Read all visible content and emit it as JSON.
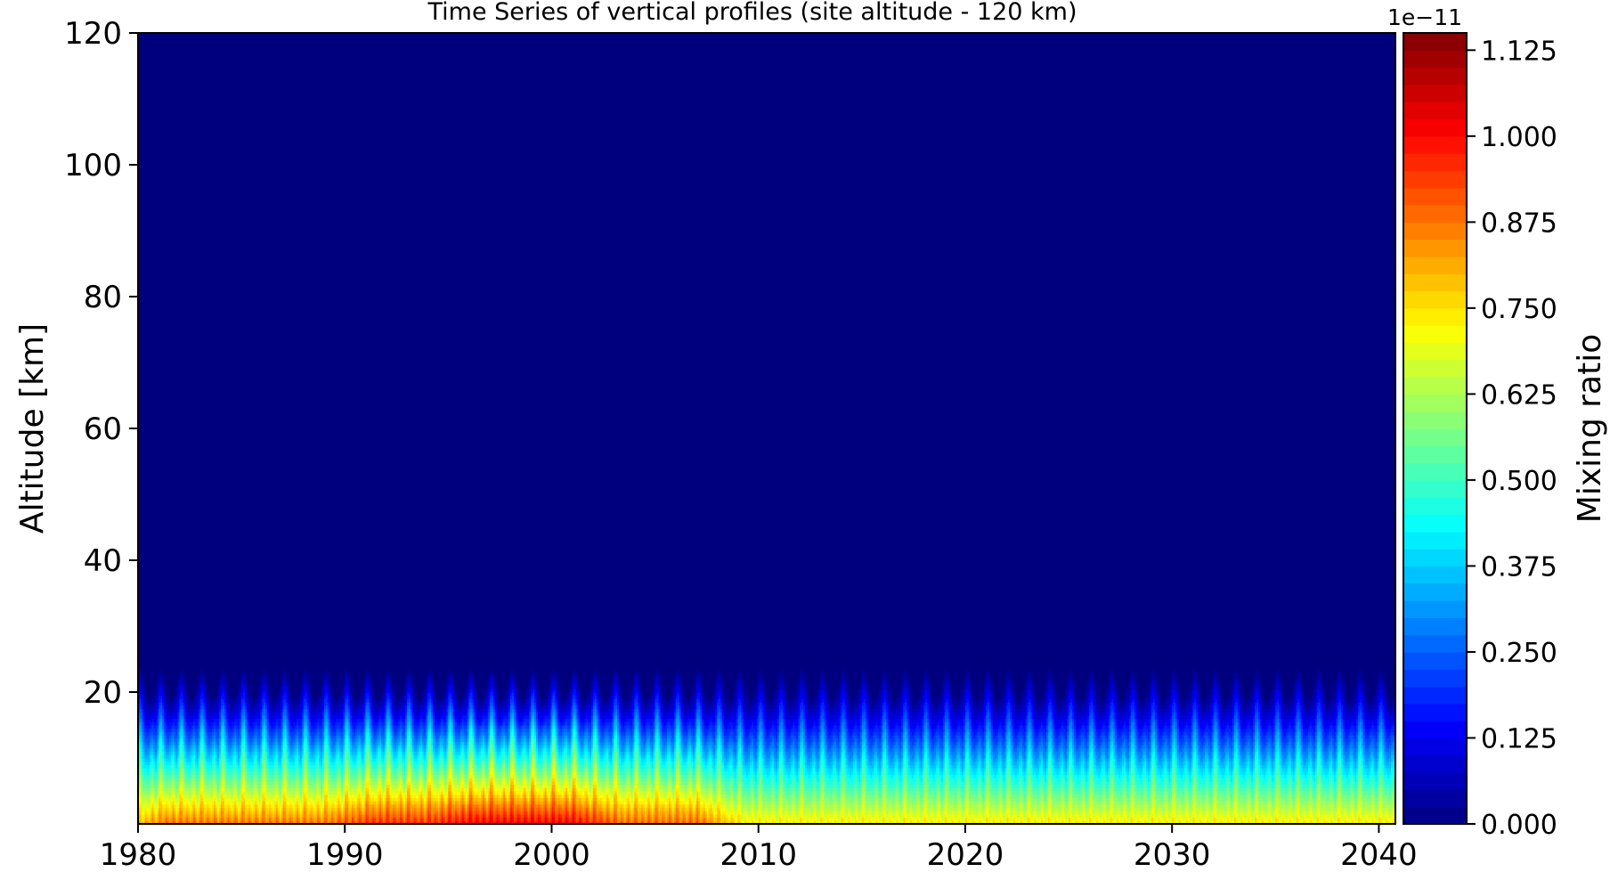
{
  "chart_data": {
    "type": "heatmap",
    "title": "Time Series of vertical profiles (site altitude - 120 km)",
    "xlabel": "",
    "ylabel": "Altitude [km]",
    "xlim": [
      1980,
      2040.8
    ],
    "ylim": [
      0,
      120
    ],
    "x_ticks": [
      "1980",
      "1990",
      "2000",
      "2010",
      "2020",
      "2030",
      "2040"
    ],
    "y_ticks": [
      "20",
      "40",
      "60",
      "80",
      "100",
      "120"
    ],
    "colorbar": {
      "label": "Mixing ratio",
      "offset_text": "1e−11",
      "scale": 1e-11,
      "range": [
        0,
        1.15
      ],
      "ticks": [
        "0.000",
        "0.125",
        "0.250",
        "0.375",
        "0.500",
        "0.625",
        "0.750",
        "0.875",
        "1.000",
        "1.125"
      ],
      "levels": 46,
      "colormap": "jet"
    },
    "surface_mixing_ratio_by_period": [
      {
        "period": "1980-1990",
        "value": 0.88
      },
      {
        "period": "1990-1995",
        "value": 0.96
      },
      {
        "period": "1995-2002",
        "value": 1.02
      },
      {
        "period": "2002-2008",
        "value": 0.9
      },
      {
        "period": "2008-2040",
        "value": 0.74
      }
    ],
    "profile_top_altitude_km": 24,
    "seasonal_cycle": "annual",
    "grid": false
  }
}
